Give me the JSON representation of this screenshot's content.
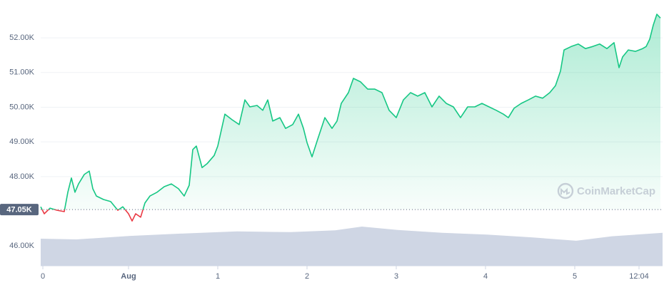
{
  "chart_data": {
    "type": "line",
    "x": [
      0,
      0.04,
      0.104,
      0.184,
      0.264,
      0.304,
      0.344,
      0.384,
      0.424,
      0.488,
      0.544,
      0.584,
      0.624,
      0.704,
      0.784,
      0.864,
      0.92,
      0.984,
      1.024,
      1.064,
      1.12,
      1.168,
      1.224,
      1.304,
      1.384,
      1.464,
      1.544,
      1.608,
      1.664,
      1.704,
      1.744,
      1.808,
      1.864,
      1.944,
      1.984,
      2.064,
      2.144,
      2.224,
      2.288,
      2.344,
      2.424,
      2.488,
      2.544,
      2.6,
      2.68,
      2.744,
      2.824,
      2.888,
      2.944,
      2.984,
      3.04,
      3.104,
      3.184,
      3.264,
      3.32,
      3.368,
      3.448,
      3.504,
      3.584,
      3.664,
      3.744,
      3.824,
      3.904,
      3.984,
      4.064,
      4.144,
      4.224,
      4.304,
      4.384,
      4.464,
      4.544,
      4.624,
      4.704,
      4.784,
      4.864,
      4.944,
      5.024,
      5.104,
      5.184,
      5.24,
      5.304,
      5.384,
      5.464,
      5.544,
      5.624,
      5.704,
      5.768,
      5.824,
      5.864,
      5.944,
      6.024,
      6.104,
      6.184,
      6.264,
      6.344,
      6.424,
      6.48,
      6.52,
      6.584,
      6.664,
      6.744,
      6.784,
      6.824,
      6.864,
      6.904,
      6.944
    ],
    "values": [
      47130,
      46930,
      47090,
      47030,
      46990,
      47550,
      47960,
      47550,
      47790,
      48060,
      48160,
      47650,
      47440,
      47340,
      47280,
      47030,
      47130,
      46930,
      46720,
      46930,
      46830,
      47240,
      47440,
      47550,
      47710,
      47790,
      47650,
      47440,
      47750,
      48780,
      48880,
      48260,
      48370,
      48610,
      48880,
      49800,
      49640,
      49500,
      50210,
      50010,
      50050,
      49910,
      50210,
      49600,
      49700,
      49390,
      49500,
      49800,
      49390,
      48980,
      48570,
      49080,
      49700,
      49390,
      49600,
      50110,
      50420,
      50830,
      50730,
      50520,
      50520,
      50420,
      49910,
      49700,
      50210,
      50420,
      50320,
      50420,
      50010,
      50320,
      50110,
      50010,
      49700,
      50010,
      50010,
      50110,
      50010,
      49910,
      49800,
      49700,
      49970,
      50110,
      50210,
      50320,
      50260,
      50420,
      50620,
      51040,
      51650,
      51750,
      51820,
      51690,
      51750,
      51820,
      51690,
      51860,
      51140,
      51450,
      51650,
      51610,
      51690,
      51750,
      51960,
      52370,
      52680,
      52570
    ],
    "up_color": "#16c784",
    "down_color": "#ea3943",
    "reference": {
      "value": 47050,
      "label": "47.05K"
    },
    "volume": {
      "x": [
        0,
        0.4,
        1.0,
        1.6,
        2.2,
        2.8,
        3.3,
        3.6,
        4.0,
        4.5,
        5.0,
        5.5,
        6.0,
        6.4,
        6.968
      ],
      "values": [
        46210,
        46190,
        46290,
        46360,
        46420,
        46400,
        46450,
        46560,
        46460,
        46380,
        46330,
        46250,
        46150,
        46280,
        46380
      ],
      "color": "#cfd6e4"
    },
    "xlim": [
      0,
      6.968
    ],
    "xticks": [
      {
        "value": 0.024,
        "label": "0"
      },
      {
        "value": 0.984,
        "label": "Aug"
      },
      {
        "value": 1.984,
        "label": "1"
      },
      {
        "value": 2.984,
        "label": "2"
      },
      {
        "value": 3.984,
        "label": "3"
      },
      {
        "value": 4.984,
        "label": "4"
      },
      {
        "value": 5.984,
        "label": "5"
      },
      {
        "value": 6.704,
        "label": "12:04"
      }
    ],
    "ylim": [
      45430,
      53090
    ],
    "yticks": [
      {
        "value": 46000,
        "label": "46.00K"
      },
      {
        "value": 48000,
        "label": "48.00K"
      },
      {
        "value": 49000,
        "label": "49.00K"
      },
      {
        "value": 50000,
        "label": "50.00K"
      },
      {
        "value": 51000,
        "label": "51.00K"
      },
      {
        "value": 52000,
        "label": "52.00K"
      }
    ],
    "grid": true,
    "watermark": "CoinMarketCap"
  }
}
